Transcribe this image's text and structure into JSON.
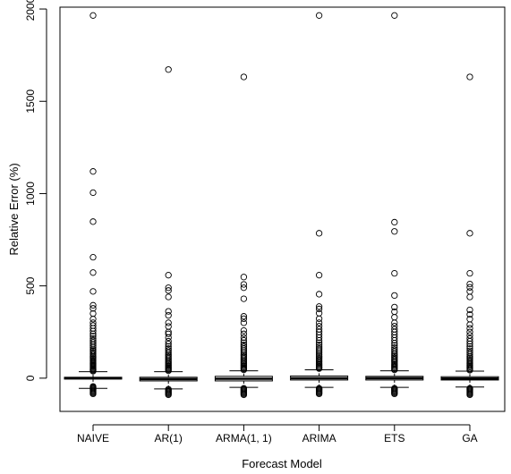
{
  "chart_data": {
    "type": "boxplot",
    "title": "",
    "xlabel": "Forecast Model",
    "ylabel": "Relative Error (%)",
    "ylim": [
      -180,
      2010
    ],
    "yticks": [
      0,
      500,
      1000,
      1500,
      2000
    ],
    "grid": false,
    "legend": "none",
    "categories": [
      "NAIVE",
      "AR(1)",
      "ARMA(1, 1)",
      "ARIMA",
      "ETS",
      "GA"
    ],
    "series": [
      {
        "stats": {
          "lower_whisker": -55,
          "q1": -5,
          "median": 0,
          "q3": 5,
          "upper_whisker": 35
        },
        "outliers": [
          1965,
          1120,
          1005,
          848,
          655,
          572,
          470,
          395,
          378,
          350,
          320,
          300,
          285,
          270,
          255,
          240,
          228,
          215,
          205,
          195,
          185,
          175,
          165,
          155,
          148,
          140,
          132,
          125,
          118,
          112,
          105,
          98,
          92,
          86,
          80,
          75,
          70,
          65,
          60,
          55,
          50,
          46,
          42,
          38,
          -45,
          -50,
          -55,
          -60,
          -65,
          -70,
          -75,
          -80,
          -85
        ]
      },
      {
        "stats": {
          "lower_whisker": -58,
          "q1": -15,
          "median": -5,
          "q3": 5,
          "upper_whisker": 35
        },
        "outliers": [
          1672,
          558,
          490,
          475,
          440,
          362,
          340,
          300,
          280,
          250,
          240,
          220,
          200,
          185,
          172,
          160,
          150,
          140,
          130,
          122,
          115,
          108,
          100,
          92,
          85,
          78,
          72,
          66,
          60,
          55,
          50,
          45,
          40,
          -60,
          -65,
          -70,
          -75,
          -80,
          -85,
          -90
        ]
      },
      {
        "stats": {
          "lower_whisker": -50,
          "q1": -15,
          "median": -3,
          "q3": 10,
          "upper_whisker": 40
        },
        "outliers": [
          1632,
          548,
          508,
          490,
          430,
          335,
          322,
          300,
          258,
          240,
          220,
          205,
          192,
          180,
          170,
          160,
          150,
          140,
          130,
          122,
          115,
          108,
          100,
          92,
          85,
          78,
          72,
          66,
          60,
          55,
          50,
          45,
          -55,
          -60,
          -65,
          -70,
          -75,
          -80,
          -85,
          -90
        ]
      },
      {
        "stats": {
          "lower_whisker": -50,
          "q1": -10,
          "median": 0,
          "q3": 12,
          "upper_whisker": 45
        },
        "outliers": [
          1965,
          785,
          558,
          455,
          388,
          375,
          352,
          322,
          300,
          282,
          265,
          250,
          235,
          220,
          205,
          192,
          180,
          168,
          158,
          148,
          138,
          128,
          120,
          112,
          104,
          96,
          88,
          80,
          74,
          68,
          62,
          56,
          52,
          -55,
          -60,
          -65,
          -70,
          -75,
          -80,
          -85
        ]
      },
      {
        "stats": {
          "lower_whisker": -50,
          "q1": -10,
          "median": 0,
          "q3": 10,
          "upper_whisker": 40
        },
        "outliers": [
          1965,
          845,
          795,
          568,
          448,
          385,
          360,
          330,
          300,
          282,
          265,
          250,
          235,
          220,
          205,
          190,
          178,
          166,
          155,
          145,
          135,
          126,
          118,
          110,
          102,
          95,
          88,
          81,
          74,
          68,
          62,
          56,
          50,
          45,
          -55,
          -60,
          -65,
          -70,
          -75,
          -80,
          -85
        ]
      },
      {
        "stats": {
          "lower_whisker": -48,
          "q1": -10,
          "median": -2,
          "q3": 8,
          "upper_whisker": 38
        },
        "outliers": [
          1632,
          785,
          568,
          510,
          492,
          470,
          440,
          370,
          345,
          320,
          290,
          270,
          250,
          232,
          215,
          200,
          186,
          172,
          160,
          148,
          138,
          128,
          118,
          110,
          102,
          94,
          86,
          78,
          72,
          66,
          60,
          54,
          48,
          43,
          -55,
          -60,
          -65,
          -70,
          -75,
          -80,
          -85,
          -90
        ]
      }
    ]
  }
}
